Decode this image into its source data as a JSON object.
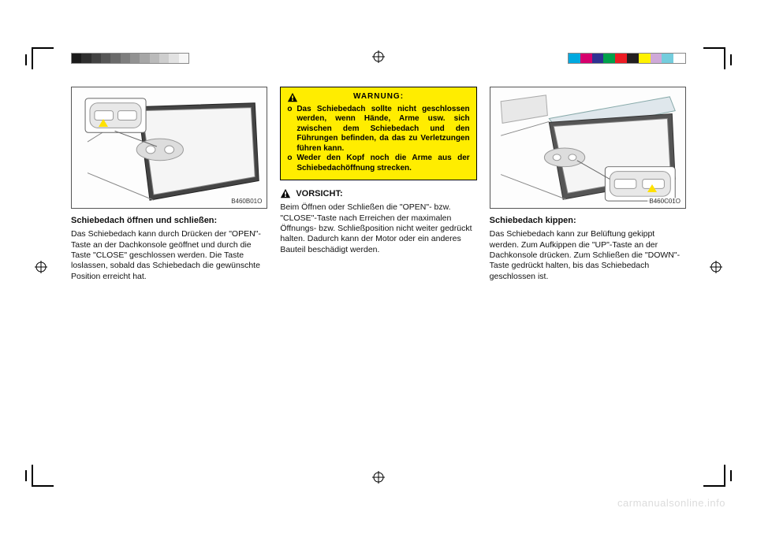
{
  "gray_bar_colors": [
    "#1a1a1a",
    "#2e2e2e",
    "#424242",
    "#565656",
    "#6a6a6a",
    "#7e7e7e",
    "#929292",
    "#a6a6a6",
    "#bababa",
    "#cecece",
    "#e2e2e2",
    "#f6f6f6"
  ],
  "color_bar_colors": [
    "#00a9e0",
    "#d6006d",
    "#2e3192",
    "#00a14b",
    "#ec1c24",
    "#231f20",
    "#fff200",
    "#cfa9d8",
    "#74cddd",
    "#ffffff"
  ],
  "warning": {
    "title": "WARNUNG:",
    "items": [
      "Das Schiebedach sollte nicht geschlossen werden, wenn Hände, Arme usw. sich zwischen dem Schiebedach und den Führungen befinden, da das zu Verletzungen führen kann.",
      "Weder den Kopf noch die Arme aus der Schiebedachöffnung strecken."
    ]
  },
  "col1": {
    "illus_id": "B460B01O",
    "heading": "Schiebedach öffnen und schließen:",
    "body": "Das Schiebedach kann durch Drücken der \"OPEN\"-Taste an der Dachkonsole geöffnet und durch die Taste \"CLOSE\" geschlossen werden. Die Taste loslassen, sobald das Schiebedach die gewünschte Position erreicht hat."
  },
  "col2": {
    "caution_title": "VORSICHT:",
    "caution_body": "Beim Öffnen oder Schließen die \"OPEN\"- bzw. \"CLOSE\"-Taste nach Erreichen der maximalen Öffnungs- bzw. Schließposition nicht weiter gedrückt halten. Dadurch kann der Motor oder ein anderes Bauteil beschädigt werden."
  },
  "col3": {
    "illus_id": "B460C01O",
    "heading": "Schiebedach kippen:",
    "body": "Das Schiebedach kann zur Belüftung gekippt werden. Zum Aufkippen die \"UP\"-Taste an der Dachkonsole drücken. Zum Schließen die \"DOWN\"-Taste gedrückt halten, bis das Schiebedach geschlossen ist."
  },
  "watermark": "carmanualsonline.info"
}
